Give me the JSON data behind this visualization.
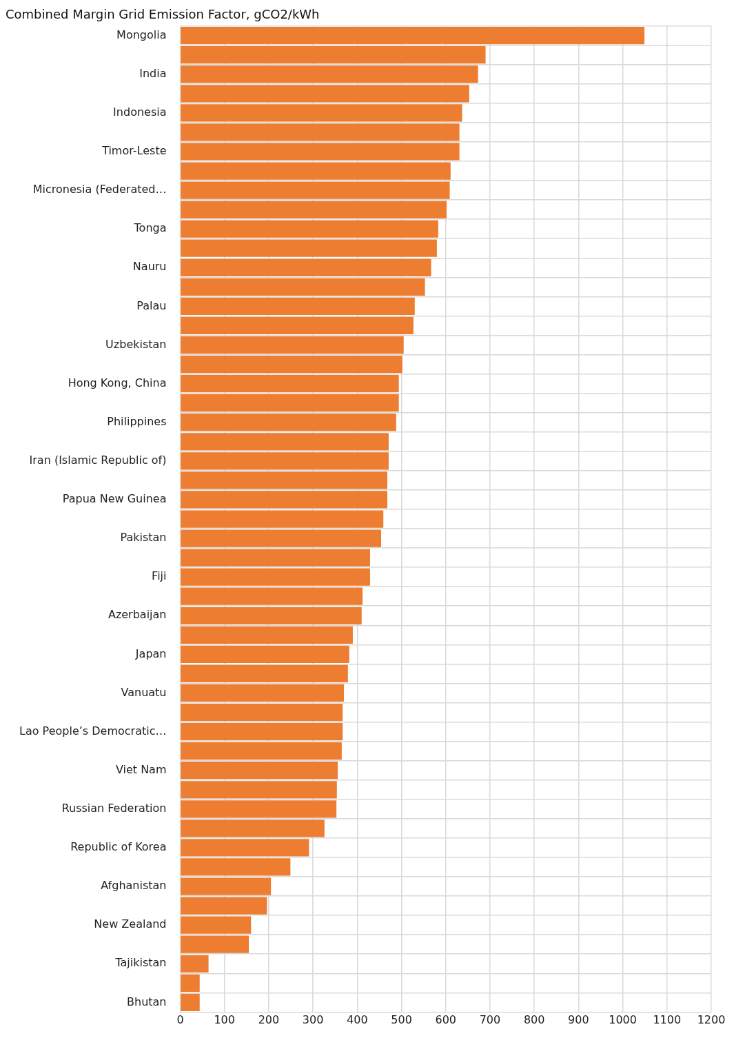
{
  "chart_data": {
    "type": "bar",
    "orientation": "horizontal",
    "title": "Combined Margin Grid Emission Factor, gCO2/kWh",
    "categories": [
      "Mongolia",
      null,
      "India",
      null,
      "Indonesia",
      null,
      "Timor-Leste",
      null,
      "Micronesia (Federated…",
      null,
      "Tonga",
      null,
      "Nauru",
      null,
      "Palau",
      null,
      "Uzbekistan",
      null,
      "Hong Kong, China",
      null,
      "Philippines",
      null,
      "Iran (Islamic Republic of)",
      null,
      "Papua New Guinea",
      null,
      "Pakistan",
      null,
      "Fiji",
      null,
      "Azerbaijan",
      null,
      "Japan",
      null,
      "Vanuatu",
      null,
      "Lao People’s Democratic…",
      null,
      "Viet Nam",
      null,
      "Russian Federation",
      null,
      "Republic of Korea",
      null,
      "Afghanistan",
      null,
      "New Zealand",
      null,
      "Tajikistan",
      null,
      "Bhutan"
    ],
    "values": [
      1049,
      690,
      673,
      653,
      637,
      631,
      631,
      611,
      609,
      602,
      583,
      580,
      567,
      553,
      530,
      527,
      505,
      502,
      494,
      494,
      488,
      471,
      471,
      468,
      468,
      459,
      454,
      429,
      429,
      412,
      410,
      390,
      382,
      379,
      370,
      367,
      367,
      365,
      356,
      354,
      353,
      326,
      291,
      249,
      205,
      196,
      160,
      155,
      64,
      44,
      44
    ],
    "color": "#ed7d31",
    "xlim": [
      0,
      1200
    ],
    "xticks": [
      0,
      100,
      200,
      300,
      400,
      500,
      600,
      700,
      800,
      900,
      1000,
      1100,
      1200
    ],
    "grid": true
  }
}
